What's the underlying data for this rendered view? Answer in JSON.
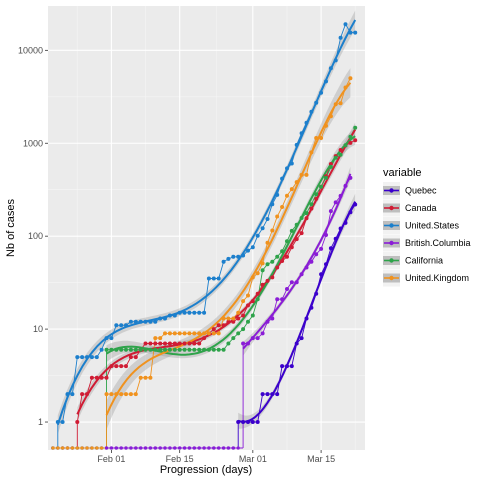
{
  "chart_data": {
    "type": "line",
    "title": "",
    "xlabel": "Progression (days)",
    "ylabel": "Nb of cases",
    "y_scale": "log10",
    "ylim": [
      0.5,
      30000
    ],
    "xlim": [
      "2020-01-19",
      "2020-03-24"
    ],
    "x_ticks": [
      {
        "date": "2020-02-01",
        "label": "Feb 01"
      },
      {
        "date": "2020-02-15",
        "label": "Feb 15"
      },
      {
        "date": "2020-03-01",
        "label": "Mar 01"
      },
      {
        "date": "2020-03-15",
        "label": "Mar 15"
      }
    ],
    "y_ticks": [
      {
        "value": 1,
        "label": "1"
      },
      {
        "value": 10,
        "label": "10"
      },
      {
        "value": 100,
        "label": "100"
      },
      {
        "value": 1000,
        "label": "1000"
      },
      {
        "value": 10000,
        "label": "10000"
      }
    ],
    "grid": true,
    "smooth_overlay": true,
    "legend": {
      "title": "variable",
      "position": "right"
    },
    "series": [
      {
        "name": "Quebec",
        "color": "#3B00CC",
        "points": [
          [
            "2020-02-27",
            1
          ],
          [
            "2020-02-28",
            1
          ],
          [
            "2020-02-29",
            1
          ],
          [
            "2020-03-01",
            1
          ],
          [
            "2020-03-02",
            1
          ],
          [
            "2020-03-03",
            2
          ],
          [
            "2020-03-04",
            2
          ],
          [
            "2020-03-05",
            2
          ],
          [
            "2020-03-06",
            2
          ],
          [
            "2020-03-07",
            4
          ],
          [
            "2020-03-08",
            4
          ],
          [
            "2020-03-09",
            4
          ],
          [
            "2020-03-10",
            7
          ],
          [
            "2020-03-11",
            8
          ],
          [
            "2020-03-12",
            13
          ],
          [
            "2020-03-13",
            17
          ],
          [
            "2020-03-14",
            24
          ],
          [
            "2020-03-15",
            39
          ],
          [
            "2020-03-16",
            50
          ],
          [
            "2020-03-17",
            74
          ],
          [
            "2020-03-18",
            94
          ],
          [
            "2020-03-19",
            121
          ],
          [
            "2020-03-20",
            139
          ],
          [
            "2020-03-21",
            181
          ],
          [
            "2020-03-22",
            219
          ]
        ]
      },
      {
        "name": "Canada",
        "color": "#D01C34",
        "points": [
          [
            "2020-01-25",
            1
          ],
          [
            "2020-01-26",
            2
          ],
          [
            "2020-01-27",
            2
          ],
          [
            "2020-01-28",
            3
          ],
          [
            "2020-01-29",
            3
          ],
          [
            "2020-01-30",
            3
          ],
          [
            "2020-01-31",
            3
          ],
          [
            "2020-02-01",
            4
          ],
          [
            "2020-02-02",
            4
          ],
          [
            "2020-02-03",
            4
          ],
          [
            "2020-02-04",
            4
          ],
          [
            "2020-02-05",
            5
          ],
          [
            "2020-02-06",
            5
          ],
          [
            "2020-02-07",
            6
          ],
          [
            "2020-02-08",
            7
          ],
          [
            "2020-02-09",
            7
          ],
          [
            "2020-02-10",
            7
          ],
          [
            "2020-02-11",
            7
          ],
          [
            "2020-02-12",
            7
          ],
          [
            "2020-02-13",
            7
          ],
          [
            "2020-02-14",
            7
          ],
          [
            "2020-02-15",
            7
          ],
          [
            "2020-02-16",
            7
          ],
          [
            "2020-02-17",
            7
          ],
          [
            "2020-02-18",
            7
          ],
          [
            "2020-02-19",
            7
          ],
          [
            "2020-02-20",
            8
          ],
          [
            "2020-02-21",
            9
          ],
          [
            "2020-02-22",
            10
          ],
          [
            "2020-02-23",
            11
          ],
          [
            "2020-02-24",
            11
          ],
          [
            "2020-02-25",
            12
          ],
          [
            "2020-02-26",
            12
          ],
          [
            "2020-02-27",
            13
          ],
          [
            "2020-02-28",
            14
          ],
          [
            "2020-02-29",
            18
          ],
          [
            "2020-03-01",
            20
          ],
          [
            "2020-03-02",
            24
          ],
          [
            "2020-03-03",
            30
          ],
          [
            "2020-03-04",
            33
          ],
          [
            "2020-03-05",
            36
          ],
          [
            "2020-03-06",
            46
          ],
          [
            "2020-03-07",
            54
          ],
          [
            "2020-03-08",
            60
          ],
          [
            "2020-03-09",
            76
          ],
          [
            "2020-03-10",
            93
          ],
          [
            "2020-03-11",
            108
          ],
          [
            "2020-03-12",
            156
          ],
          [
            "2020-03-13",
            198
          ],
          [
            "2020-03-14",
            252
          ],
          [
            "2020-03-15",
            341
          ],
          [
            "2020-03-16",
            441
          ],
          [
            "2020-03-17",
            598
          ],
          [
            "2020-03-18",
            727
          ],
          [
            "2020-03-19",
            846
          ],
          [
            "2020-03-20",
            946
          ],
          [
            "2020-03-21",
            1010
          ],
          [
            "2020-03-22",
            1080
          ]
        ]
      },
      {
        "name": "United.States",
        "color": "#1C7FCC",
        "points": [
          [
            "2020-01-21",
            1
          ],
          [
            "2020-01-22",
            1
          ],
          [
            "2020-01-23",
            2
          ],
          [
            "2020-01-24",
            2
          ],
          [
            "2020-01-25",
            5
          ],
          [
            "2020-01-26",
            5
          ],
          [
            "2020-01-27",
            5
          ],
          [
            "2020-01-28",
            5
          ],
          [
            "2020-01-29",
            5
          ],
          [
            "2020-01-30",
            6
          ],
          [
            "2020-01-31",
            8
          ],
          [
            "2020-02-01",
            8
          ],
          [
            "2020-02-02",
            11
          ],
          [
            "2020-02-03",
            11
          ],
          [
            "2020-02-04",
            11
          ],
          [
            "2020-02-05",
            12
          ],
          [
            "2020-02-06",
            12
          ],
          [
            "2020-02-07",
            12
          ],
          [
            "2020-02-08",
            12
          ],
          [
            "2020-02-09",
            12
          ],
          [
            "2020-02-10",
            12
          ],
          [
            "2020-02-11",
            13
          ],
          [
            "2020-02-12",
            13
          ],
          [
            "2020-02-13",
            14
          ],
          [
            "2020-02-14",
            14
          ],
          [
            "2020-02-15",
            15
          ],
          [
            "2020-02-16",
            15
          ],
          [
            "2020-02-17",
            15
          ],
          [
            "2020-02-18",
            15
          ],
          [
            "2020-02-19",
            15
          ],
          [
            "2020-02-20",
            15
          ],
          [
            "2020-02-21",
            35
          ],
          [
            "2020-02-22",
            35
          ],
          [
            "2020-02-23",
            35
          ],
          [
            "2020-02-24",
            53
          ],
          [
            "2020-02-25",
            57
          ],
          [
            "2020-02-26",
            60
          ],
          [
            "2020-02-27",
            60
          ],
          [
            "2020-02-28",
            62
          ],
          [
            "2020-02-29",
            70
          ],
          [
            "2020-03-01",
            76
          ],
          [
            "2020-03-02",
            101
          ],
          [
            "2020-03-03",
            122
          ],
          [
            "2020-03-04",
            153
          ],
          [
            "2020-03-05",
            221
          ],
          [
            "2020-03-06",
            278
          ],
          [
            "2020-03-07",
            417
          ],
          [
            "2020-03-08",
            537
          ],
          [
            "2020-03-09",
            605
          ],
          [
            "2020-03-10",
            959
          ],
          [
            "2020-03-11",
            1281
          ],
          [
            "2020-03-12",
            1663
          ],
          [
            "2020-03-13",
            2179
          ],
          [
            "2020-03-14",
            2726
          ],
          [
            "2020-03-15",
            3499
          ],
          [
            "2020-03-16",
            4632
          ],
          [
            "2020-03-17",
            6421
          ],
          [
            "2020-03-18",
            7786
          ],
          [
            "2020-03-19",
            13680
          ],
          [
            "2020-03-20",
            19101
          ],
          [
            "2020-03-21",
            15500
          ],
          [
            "2020-03-22",
            15500
          ]
        ]
      },
      {
        "name": "British.Columbia",
        "color": "#8A1CD6",
        "points": [
          [
            "2020-02-28",
            7
          ],
          [
            "2020-02-29",
            7
          ],
          [
            "2020-03-01",
            8
          ],
          [
            "2020-03-02",
            8
          ],
          [
            "2020-03-03",
            9
          ],
          [
            "2020-03-04",
            12
          ],
          [
            "2020-03-05",
            13
          ],
          [
            "2020-03-06",
            21
          ],
          [
            "2020-03-07",
            21
          ],
          [
            "2020-03-08",
            27
          ],
          [
            "2020-03-09",
            32
          ],
          [
            "2020-03-10",
            32
          ],
          [
            "2020-03-11",
            39
          ],
          [
            "2020-03-12",
            46
          ],
          [
            "2020-03-13",
            53
          ],
          [
            "2020-03-14",
            64
          ],
          [
            "2020-03-15",
            73
          ],
          [
            "2020-03-16",
            103
          ],
          [
            "2020-03-17",
            186
          ],
          [
            "2020-03-18",
            231
          ],
          [
            "2020-03-19",
            271
          ],
          [
            "2020-03-20",
            348
          ],
          [
            "2020-03-21",
            424
          ]
        ]
      },
      {
        "name": "California",
        "color": "#2EA34A",
        "points": [
          [
            "2020-01-31",
            6
          ],
          [
            "2020-02-01",
            6
          ],
          [
            "2020-02-02",
            6
          ],
          [
            "2020-02-03",
            6
          ],
          [
            "2020-02-04",
            6
          ],
          [
            "2020-02-05",
            6
          ],
          [
            "2020-02-06",
            6
          ],
          [
            "2020-02-07",
            6
          ],
          [
            "2020-02-08",
            6
          ],
          [
            "2020-02-09",
            6
          ],
          [
            "2020-02-10",
            6
          ],
          [
            "2020-02-11",
            6
          ],
          [
            "2020-02-12",
            6
          ],
          [
            "2020-02-13",
            6
          ],
          [
            "2020-02-14",
            6
          ],
          [
            "2020-02-15",
            6
          ],
          [
            "2020-02-16",
            6
          ],
          [
            "2020-02-17",
            6
          ],
          [
            "2020-02-18",
            6
          ],
          [
            "2020-02-19",
            6
          ],
          [
            "2020-02-20",
            6
          ],
          [
            "2020-02-21",
            6
          ],
          [
            "2020-02-22",
            6
          ],
          [
            "2020-02-23",
            6
          ],
          [
            "2020-02-24",
            6
          ],
          [
            "2020-02-25",
            7
          ],
          [
            "2020-02-26",
            8
          ],
          [
            "2020-02-27",
            9
          ],
          [
            "2020-02-28",
            10
          ],
          [
            "2020-02-29",
            12
          ],
          [
            "2020-03-01",
            14
          ],
          [
            "2020-03-02",
            21
          ],
          [
            "2020-03-03",
            43
          ],
          [
            "2020-03-04",
            50
          ],
          [
            "2020-03-05",
            53
          ],
          [
            "2020-03-06",
            60
          ],
          [
            "2020-03-07",
            69
          ],
          [
            "2020-03-08",
            88
          ],
          [
            "2020-03-09",
            114
          ],
          [
            "2020-03-10",
            133
          ],
          [
            "2020-03-11",
            157
          ],
          [
            "2020-03-12",
            177
          ],
          [
            "2020-03-13",
            221
          ],
          [
            "2020-03-14",
            282
          ],
          [
            "2020-03-15",
            340
          ],
          [
            "2020-03-16",
            426
          ],
          [
            "2020-03-17",
            557
          ],
          [
            "2020-03-18",
            698
          ],
          [
            "2020-03-19",
            751
          ],
          [
            "2020-03-20",
            952
          ],
          [
            "2020-03-21",
            1177
          ],
          [
            "2020-03-22",
            1469
          ]
        ]
      },
      {
        "name": "United.Kingdom",
        "color": "#F0921E",
        "points": [
          [
            "2020-01-31",
            2
          ],
          [
            "2020-02-01",
            2
          ],
          [
            "2020-02-02",
            2
          ],
          [
            "2020-02-03",
            2
          ],
          [
            "2020-02-04",
            2
          ],
          [
            "2020-02-05",
            2
          ],
          [
            "2020-02-06",
            2
          ],
          [
            "2020-02-07",
            3
          ],
          [
            "2020-02-08",
            3
          ],
          [
            "2020-02-09",
            3
          ],
          [
            "2020-02-10",
            8
          ],
          [
            "2020-02-11",
            8
          ],
          [
            "2020-02-12",
            9
          ],
          [
            "2020-02-13",
            9
          ],
          [
            "2020-02-14",
            9
          ],
          [
            "2020-02-15",
            9
          ],
          [
            "2020-02-16",
            9
          ],
          [
            "2020-02-17",
            9
          ],
          [
            "2020-02-18",
            9
          ],
          [
            "2020-02-19",
            9
          ],
          [
            "2020-02-20",
            9
          ],
          [
            "2020-02-21",
            9
          ],
          [
            "2020-02-22",
            9
          ],
          [
            "2020-02-23",
            9
          ],
          [
            "2020-02-24",
            13
          ],
          [
            "2020-02-25",
            13
          ],
          [
            "2020-02-26",
            13
          ],
          [
            "2020-02-27",
            15
          ],
          [
            "2020-02-28",
            20
          ],
          [
            "2020-02-29",
            23
          ],
          [
            "2020-03-01",
            36
          ],
          [
            "2020-03-02",
            40
          ],
          [
            "2020-03-03",
            51
          ],
          [
            "2020-03-04",
            85
          ],
          [
            "2020-03-05",
            115
          ],
          [
            "2020-03-06",
            163
          ],
          [
            "2020-03-07",
            206
          ],
          [
            "2020-03-08",
            273
          ],
          [
            "2020-03-09",
            321
          ],
          [
            "2020-03-10",
            382
          ],
          [
            "2020-03-11",
            456
          ],
          [
            "2020-03-12",
            456
          ],
          [
            "2020-03-13",
            798
          ],
          [
            "2020-03-14",
            1140
          ],
          [
            "2020-03-15",
            1140
          ],
          [
            "2020-03-16",
            1543
          ],
          [
            "2020-03-17",
            1950
          ],
          [
            "2020-03-18",
            2626
          ],
          [
            "2020-03-19",
            2689
          ],
          [
            "2020-03-20",
            3983
          ],
          [
            "2020-03-21",
            5018
          ]
        ]
      }
    ]
  }
}
